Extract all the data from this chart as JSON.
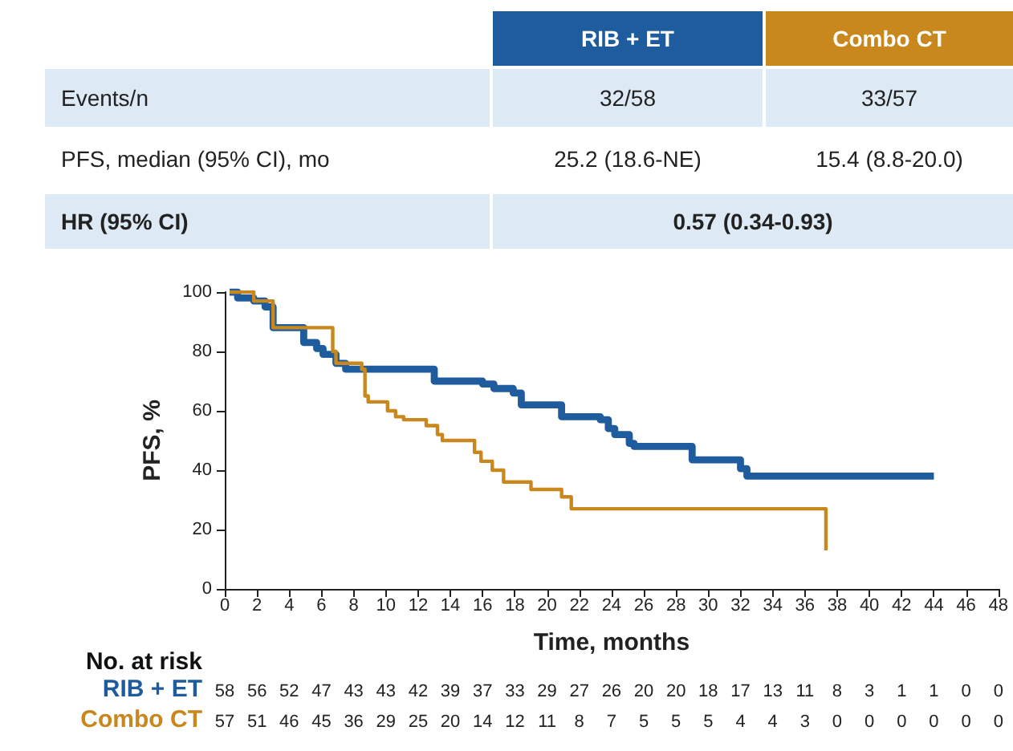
{
  "chart_data": {
    "type": "step",
    "xlabel": "Time, months",
    "ylabel": "PFS, %",
    "xlim": [
      0,
      48
    ],
    "xticks": [
      0,
      2,
      4,
      6,
      8,
      10,
      12,
      14,
      16,
      18,
      20,
      22,
      24,
      26,
      28,
      30,
      32,
      34,
      36,
      38,
      40,
      42,
      44,
      46,
      48
    ],
    "ylim": [
      0,
      100
    ],
    "yticks": [
      0,
      20,
      40,
      60,
      80,
      100
    ],
    "grid": false,
    "legend": false,
    "marker": "none",
    "line_style": "solid",
    "series": [
      {
        "name": "RIB + ET",
        "color": "#1f5c9e",
        "x": [
          0.3,
          0.8,
          1.8,
          2.5,
          3.0,
          4.9,
          5.7,
          6.1,
          6.9,
          7.5,
          13.0,
          16.0,
          16.7,
          17.9,
          18.4,
          20.9,
          23.3,
          23.8,
          24.2,
          25.1,
          25.4,
          29.0,
          32.0,
          32.4,
          44.0
        ],
        "values": [
          100,
          98,
          97,
          95,
          88,
          83,
          81,
          79,
          76,
          74,
          70,
          69,
          67.5,
          66,
          62,
          58,
          57,
          54,
          52,
          49,
          48,
          43.5,
          40.5,
          38,
          38
        ]
      },
      {
        "name": "Combo CT",
        "color": "#c8881e",
        "x": [
          0.3,
          1.8,
          3.0,
          6.7,
          6.9,
          8.5,
          8.7,
          8.9,
          10.1,
          10.6,
          11.1,
          12.5,
          13.2,
          13.5,
          15.5,
          15.9,
          16.6,
          17.3,
          19.0,
          20.9,
          21.5,
          37.2,
          37.3
        ],
        "values": [
          100,
          97,
          88,
          80,
          76,
          74,
          65,
          63,
          60,
          58,
          57,
          55,
          52,
          50,
          46,
          43,
          40,
          36,
          33.5,
          31,
          27,
          27,
          13
        ]
      }
    ],
    "annotations": [
      "Events/n",
      "32/58",
      "33/57",
      "PFS, median (95% CI), mo",
      "25.2 (18.6-NE)",
      "15.4 (8.8-20.0)",
      "HR (95% CI)",
      "0.57 (0.34-0.93)",
      "No. at risk",
      "58 56 52 47 43 43 42 39 37 33 29 27 26 20 20 18 17 13 11 8 3 1 1 0 0",
      "57 51 46 45 36 29 25 20 14 12 11 8 7 5 5 5 4 4 3 0 0 0 0 0 0"
    ]
  }
}
